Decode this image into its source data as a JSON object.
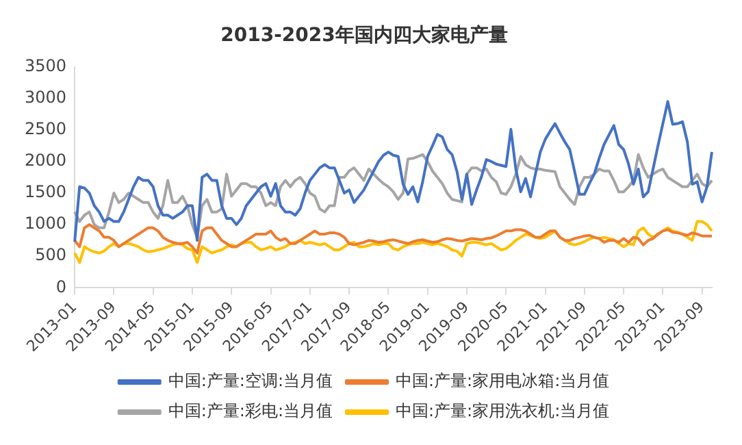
{
  "chart_data": {
    "type": "line",
    "title": "2013-2023年国内四大家电产量",
    "categories": [
      "2013-01",
      null,
      null,
      null,
      null,
      null,
      null,
      null,
      "2013-09",
      null,
      null,
      null,
      null,
      null,
      null,
      null,
      "2014-05",
      null,
      null,
      null,
      null,
      null,
      null,
      null,
      "2015-01",
      null,
      null,
      null,
      null,
      null,
      null,
      null,
      "2015-09",
      null,
      null,
      null,
      null,
      null,
      null,
      null,
      "2016-05",
      null,
      null,
      null,
      null,
      null,
      null,
      null,
      "2017-01",
      null,
      null,
      null,
      null,
      null,
      null,
      null,
      "2017-09",
      null,
      null,
      null,
      null,
      null,
      null,
      null,
      "2018-05",
      null,
      null,
      null,
      null,
      null,
      null,
      null,
      "2019-01",
      null,
      null,
      null,
      null,
      null,
      null,
      null,
      "2019-09",
      null,
      null,
      null,
      null,
      null,
      null,
      null,
      "2020-05",
      null,
      null,
      null,
      null,
      null,
      null,
      null,
      "2021-01",
      null,
      null,
      null,
      null,
      null,
      null,
      null,
      "2021-09",
      null,
      null,
      null,
      null,
      null,
      null,
      null,
      "2022-05",
      null,
      null,
      null,
      null,
      null,
      null,
      null,
      "2023-01",
      null,
      null,
      null,
      null,
      null,
      null,
      null,
      "2023-09",
      null,
      null
    ],
    "series": [
      {
        "name": "中国:产量:空调:当月值",
        "color": "#4472c4",
        "values": [
          730,
          1600,
          1580,
          1500,
          1300,
          1200,
          1050,
          1100,
          1050,
          1050,
          1200,
          1400,
          1600,
          1750,
          1700,
          1700,
          1600,
          1300,
          1150,
          1150,
          1100,
          1150,
          1200,
          1300,
          1300,
          750,
          1750,
          1800,
          1700,
          1700,
          1300,
          1100,
          1100,
          1000,
          1100,
          1300,
          1400,
          1500,
          1600,
          1650,
          1450,
          1650,
          1300,
          1200,
          1200,
          1150,
          1250,
          1500,
          1700,
          1800,
          1900,
          1950,
          1900,
          1900,
          1700,
          1500,
          1550,
          1350,
          1450,
          1550,
          1700,
          1850,
          2000,
          2100,
          2150,
          2100,
          2080,
          1640,
          1480,
          1600,
          1360,
          1680,
          2080,
          2250,
          2430,
          2390,
          2190,
          2110,
          1840,
          1400,
          1800,
          1320,
          1550,
          1760,
          2030,
          2000,
          1960,
          1940,
          1920,
          2510,
          1880,
          1520,
          1730,
          1440,
          1800,
          2150,
          2350,
          2480,
          2600,
          2450,
          2310,
          2190,
          1840,
          1480,
          1480,
          1650,
          1800,
          2050,
          2270,
          2420,
          2570,
          2270,
          2190,
          1960,
          1640,
          1880,
          1440,
          1520,
          1880,
          2250,
          2600,
          2950,
          2590,
          2600,
          2630,
          2310,
          1640,
          1680,
          1360,
          1600,
          2150
        ]
      },
      {
        "name": "中国:产量:家用电冰箱:当月值",
        "color": "#ed7d31",
        "values": [
          750,
          650,
          950,
          1000,
          950,
          900,
          800,
          800,
          750,
          650,
          700,
          750,
          800,
          850,
          900,
          950,
          950,
          900,
          800,
          750,
          720,
          700,
          700,
          720,
          650,
          550,
          900,
          950,
          950,
          850,
          750,
          700,
          650,
          650,
          700,
          750,
          800,
          850,
          850,
          850,
          900,
          800,
          750,
          780,
          700,
          700,
          750,
          800,
          850,
          900,
          850,
          850,
          870,
          870,
          850,
          800,
          700,
          680,
          700,
          720,
          750,
          740,
          720,
          730,
          750,
          760,
          740,
          720,
          700,
          730,
          750,
          760,
          740,
          720,
          730,
          760,
          780,
          770,
          750,
          740,
          760,
          780,
          770,
          760,
          780,
          790,
          820,
          860,
          900,
          900,
          920,
          920,
          900,
          850,
          800,
          800,
          850,
          900,
          900,
          800,
          750,
          750,
          780,
          800,
          820,
          830,
          800,
          780,
          720,
          750,
          750,
          720,
          780,
          720,
          800,
          780,
          680,
          750,
          780,
          850,
          900,
          920,
          880,
          870,
          850,
          830,
          870,
          850,
          820,
          820,
          820
        ]
      },
      {
        "name": "中国:产量:彩电:当月值",
        "color": "#a5a5a5",
        "values": [
          1200,
          1050,
          1150,
          1200,
          1000,
          950,
          950,
          1200,
          1500,
          1350,
          1400,
          1500,
          1450,
          1400,
          1350,
          1350,
          1200,
          1100,
          1300,
          1700,
          1350,
          1350,
          1450,
          1300,
          1000,
          800,
          1300,
          1400,
          1200,
          1200,
          1250,
          1800,
          1450,
          1550,
          1650,
          1650,
          1600,
          1600,
          1500,
          1300,
          1350,
          1300,
          1600,
          1700,
          1600,
          1700,
          1750,
          1650,
          1500,
          1450,
          1250,
          1200,
          1300,
          1300,
          1750,
          1750,
          1850,
          1900,
          1800,
          1700,
          1880,
          1800,
          1720,
          1650,
          1600,
          1520,
          1400,
          1500,
          2040,
          2050,
          2080,
          2110,
          2000,
          1850,
          1750,
          1650,
          1500,
          1400,
          1380,
          1360,
          1800,
          1900,
          1900,
          1850,
          1880,
          1750,
          1680,
          1500,
          1480,
          1600,
          1800,
          2080,
          1950,
          1900,
          1880,
          1880,
          1860,
          1850,
          1840,
          1600,
          1500,
          1400,
          1320,
          1600,
          1750,
          1750,
          1800,
          1880,
          1850,
          1850,
          1700,
          1520,
          1520,
          1600,
          1700,
          2110,
          1900,
          1750,
          1800,
          1850,
          1880,
          1750,
          1700,
          1650,
          1600,
          1600,
          1700,
          1800,
          1650,
          1600,
          1700
        ]
      },
      {
        "name": "中国:产量:家用洗衣机:当月值",
        "color": "#ffc000",
        "values": [
          550,
          400,
          650,
          600,
          570,
          550,
          580,
          650,
          700,
          650,
          700,
          700,
          680,
          650,
          600,
          570,
          580,
          600,
          620,
          650,
          680,
          700,
          680,
          620,
          600,
          400,
          650,
          600,
          550,
          580,
          600,
          650,
          680,
          650,
          700,
          720,
          720,
          650,
          600,
          620,
          650,
          600,
          620,
          650,
          700,
          720,
          750,
          700,
          720,
          700,
          680,
          700,
          650,
          600,
          600,
          650,
          700,
          720,
          650,
          650,
          670,
          700,
          680,
          700,
          700,
          620,
          600,
          650,
          680,
          700,
          700,
          720,
          700,
          680,
          700,
          680,
          650,
          600,
          580,
          500,
          700,
          720,
          720,
          700,
          680,
          700,
          650,
          600,
          620,
          680,
          750,
          800,
          850,
          830,
          800,
          780,
          800,
          850,
          900,
          800,
          750,
          700,
          680,
          700,
          730,
          770,
          800,
          780,
          800,
          780,
          760,
          700,
          650,
          700,
          680,
          900,
          950,
          850,
          800,
          850,
          900,
          950,
          900,
          880,
          850,
          800,
          750,
          1050,
          1050,
          1000,
          900
        ]
      }
    ],
    "ylim": [
      0,
      3500
    ],
    "yticks": [
      0,
      500,
      1000,
      1500,
      2000,
      2500,
      3000,
      3500
    ],
    "legend": "bottom",
    "grid": false,
    "marker": "none"
  }
}
